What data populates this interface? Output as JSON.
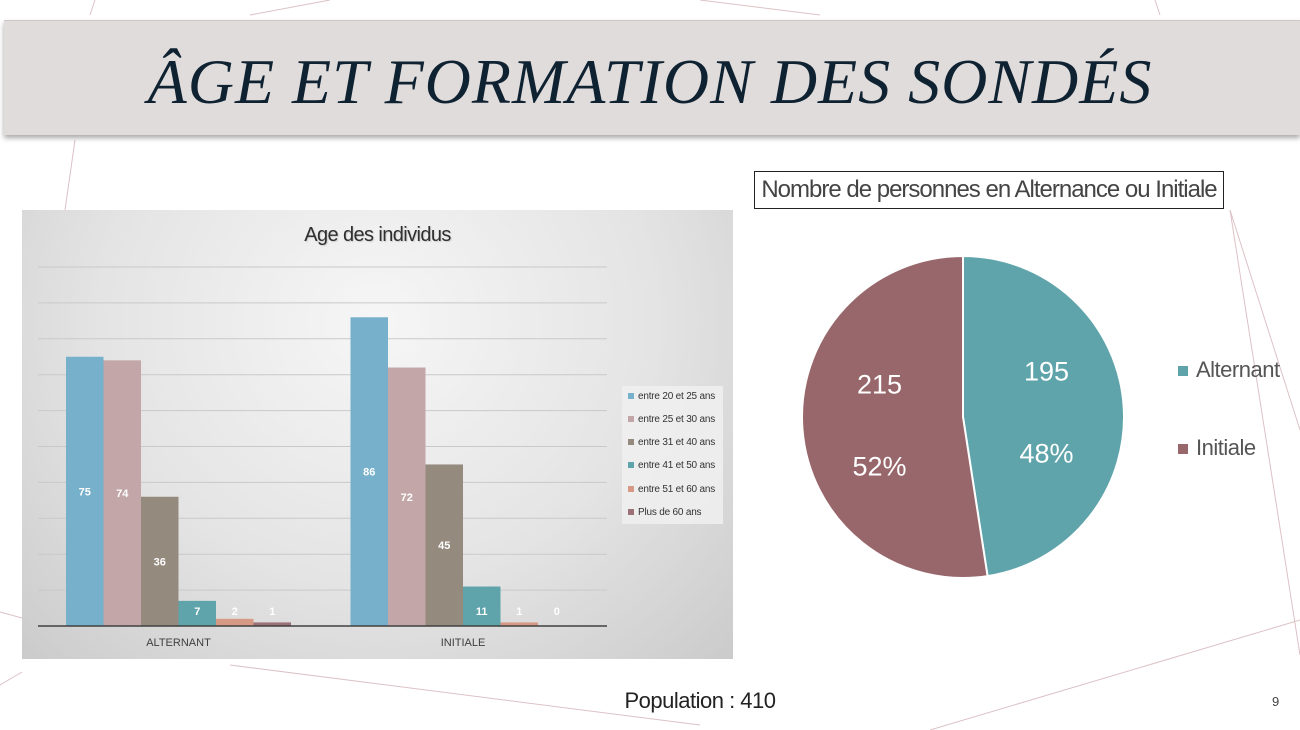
{
  "slide": {
    "title": "ÂGE ET FORMATION DES SONDÉS",
    "population": "Population : 410",
    "slide_number": "9"
  },
  "chart_data": [
    {
      "type": "bar",
      "title": "Age des individus",
      "categories": [
        "ALTERNANT",
        "INITIALE"
      ],
      "series": [
        {
          "name": "entre 20 et 25 ans",
          "values": [
            75,
            86
          ],
          "color": "#77b0cb"
        },
        {
          "name": "entre 25 et 30 ans",
          "values": [
            74,
            72
          ],
          "color": "#c2a6a8"
        },
        {
          "name": "entre 31 et 40 ans",
          "values": [
            36,
            45
          ],
          "color": "#948a7e"
        },
        {
          "name": "entre 41 et 50 ans",
          "values": [
            7,
            11
          ],
          "color": "#5ea4aa"
        },
        {
          "name": "entre 51 et 60 ans",
          "values": [
            2,
            1
          ],
          "color": "#d69a84"
        },
        {
          "name": "Plus de 60 ans",
          "values": [
            1,
            0
          ],
          "color": "#9b7077"
        }
      ],
      "ylim": [
        0,
        100
      ],
      "grid": true,
      "legend_position": "right"
    },
    {
      "type": "pie",
      "title": "Nombre de personnes en Alternance ou Initiale",
      "slices": [
        {
          "name": "Alternant",
          "value": 195,
          "percent": "48%",
          "color": "#5ea4aa"
        },
        {
          "name": "Initiale",
          "value": 215,
          "percent": "52%",
          "color": "#98676c"
        }
      ],
      "legend_position": "right"
    }
  ]
}
